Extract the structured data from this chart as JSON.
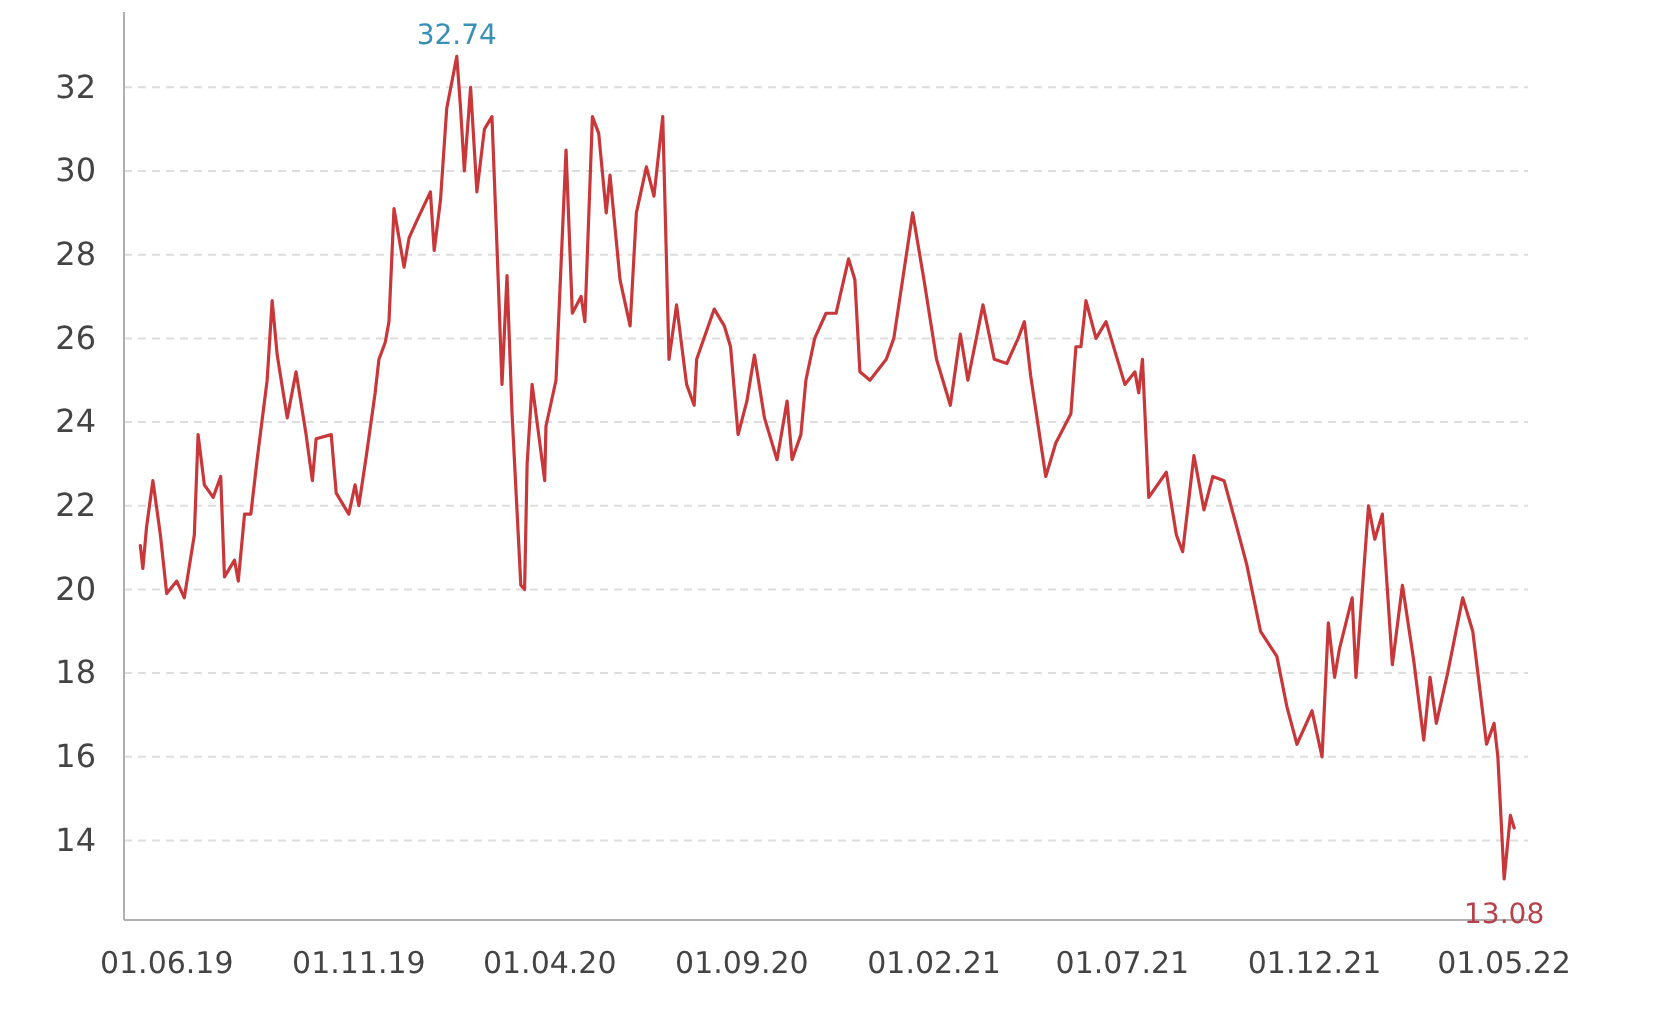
{
  "chart_data": {
    "type": "line",
    "xlim": [
      "2019-04-28",
      "2022-05-20"
    ],
    "xticks": [
      {
        "value": "2019-06-01",
        "label": "01.06.19"
      },
      {
        "value": "2019-11-01",
        "label": "01.11.19"
      },
      {
        "value": "2020-04-01",
        "label": "01.04.20"
      },
      {
        "value": "2020-09-01",
        "label": "01.09.20"
      },
      {
        "value": "2021-02-01",
        "label": "01.02.21"
      },
      {
        "value": "2021-07-01",
        "label": "01.07.21"
      },
      {
        "value": "2021-12-01",
        "label": "01.12.21"
      },
      {
        "value": "2022-05-01",
        "label": "01.05.22"
      }
    ],
    "ylim": [
      12.1,
      33.8
    ],
    "yticks": [
      14,
      16,
      18,
      20,
      22,
      24,
      26,
      28,
      30,
      32
    ],
    "grid": "y",
    "marker": "none",
    "line_style": "solid",
    "annotations": [
      {
        "text": "32.74",
        "x": "2020-01-18",
        "y": 32.74
      },
      {
        "text": "13.08",
        "x": "2022-05-01",
        "y": 13.08
      }
    ],
    "series": [
      {
        "color": "#c8373a",
        "x": [
          "2019-05-11",
          "2019-05-13",
          "2019-05-16",
          "2019-05-21",
          "2019-05-27",
          "2019-06-01",
          "2019-06-09",
          "2019-06-15",
          "2019-06-23",
          "2019-06-26",
          "2019-07-01",
          "2019-07-08",
          "2019-07-14",
          "2019-07-17",
          "2019-07-25",
          "2019-07-28",
          "2019-08-02",
          "2019-08-07",
          "2019-08-12",
          "2019-08-20",
          "2019-08-24",
          "2019-08-28",
          "2019-09-05",
          "2019-09-12",
          "2019-09-20",
          "2019-09-25",
          "2019-09-28",
          "2019-10-10",
          "2019-10-14",
          "2019-10-24",
          "2019-10-29",
          "2019-11-01",
          "2019-11-07",
          "2019-11-14",
          "2019-11-17",
          "2019-11-22",
          "2019-11-25",
          "2019-11-29",
          "2019-12-07",
          "2019-12-11",
          "2019-12-17",
          "2019-12-28",
          "2019-12-31",
          "2020-01-05",
          "2020-01-10",
          "2020-01-18",
          "2020-01-21",
          "2020-01-24",
          "2020-01-29",
          "2020-02-03",
          "2020-02-09",
          "2020-02-15",
          "2020-02-19",
          "2020-02-23",
          "2020-02-27",
          "2020-03-02",
          "2020-03-09",
          "2020-03-12",
          "2020-03-14",
          "2020-03-18",
          "2020-03-28",
          "2020-03-29",
          "2020-04-06",
          "2020-04-14",
          "2020-04-19",
          "2020-04-26",
          "2020-04-29",
          "2020-05-05",
          "2020-05-10",
          "2020-05-16",
          "2020-05-19",
          "2020-05-27",
          "2020-06-04",
          "2020-06-09",
          "2020-06-17",
          "2020-06-23",
          "2020-06-30",
          "2020-07-05",
          "2020-07-11",
          "2020-07-19",
          "2020-07-25",
          "2020-07-27",
          "2020-08-10",
          "2020-08-18",
          "2020-08-23",
          "2020-08-29",
          "2020-09-05",
          "2020-09-11",
          "2020-09-19",
          "2020-09-29",
          "2020-10-07",
          "2020-10-11",
          "2020-10-18",
          "2020-10-22",
          "2020-10-29",
          "2020-11-07",
          "2020-11-15",
          "2020-11-25",
          "2020-11-30",
          "2020-12-04",
          "2020-12-12",
          "2020-12-25",
          "2020-12-31",
          "2021-01-15",
          "2021-01-24",
          "2021-02-03",
          "2021-02-14",
          "2021-02-22",
          "2021-02-28",
          "2021-03-12",
          "2021-03-21",
          "2021-03-31",
          "2021-04-09",
          "2021-04-14",
          "2021-04-19",
          "2021-05-01",
          "2021-05-09",
          "2021-05-21",
          "2021-05-25",
          "2021-05-29",
          "2021-06-02",
          "2021-06-10",
          "2021-06-18",
          "2021-07-03",
          "2021-07-11",
          "2021-07-14",
          "2021-07-17",
          "2021-07-22",
          "2021-08-05",
          "2021-08-13",
          "2021-08-18",
          "2021-08-27",
          "2021-09-04",
          "2021-09-11",
          "2021-09-20",
          "2021-09-30",
          "2021-10-08",
          "2021-10-19",
          "2021-11-01",
          "2021-11-09",
          "2021-11-17",
          "2021-11-29",
          "2021-12-07",
          "2021-12-12",
          "2021-12-17",
          "2021-12-21",
          "2021-12-31",
          "2022-01-03",
          "2022-01-13",
          "2022-01-18",
          "2022-01-24",
          "2022-02-01",
          "2022-02-09",
          "2022-02-18",
          "2022-02-26",
          "2022-03-03",
          "2022-03-08",
          "2022-03-17",
          "2022-03-29",
          "2022-04-06",
          "2022-04-17",
          "2022-04-23",
          "2022-04-26",
          "2022-05-01",
          "2022-05-06",
          "2022-05-09"
        ],
        "values": [
          21.05,
          20.5,
          21.5,
          22.6,
          21.3,
          19.9,
          20.2,
          19.8,
          21.3,
          23.7,
          22.5,
          22.2,
          22.7,
          20.3,
          20.7,
          20.2,
          21.8,
          21.8,
          23.1,
          25.0,
          26.9,
          25.6,
          24.1,
          25.2,
          23.7,
          22.6,
          23.6,
          23.7,
          22.3,
          21.8,
          22.5,
          22.0,
          23.2,
          24.7,
          25.5,
          25.9,
          26.4,
          29.1,
          27.7,
          28.4,
          28.8,
          29.5,
          28.1,
          29.3,
          31.5,
          32.74,
          31.5,
          30.0,
          32.0,
          29.5,
          31.0,
          31.3,
          28.2,
          24.9,
          27.5,
          24.2,
          20.1,
          20.0,
          23.0,
          24.9,
          22.6,
          23.9,
          25.0,
          30.5,
          26.6,
          27.0,
          26.4,
          31.3,
          30.9,
          29.0,
          29.9,
          27.4,
          26.3,
          29.0,
          30.1,
          29.4,
          31.3,
          25.5,
          26.8,
          24.9,
          24.4,
          25.5,
          26.7,
          26.3,
          25.8,
          23.7,
          24.5,
          25.6,
          24.1,
          23.1,
          24.5,
          23.1,
          23.7,
          25.0,
          26.0,
          26.6,
          26.6,
          27.9,
          27.4,
          25.2,
          25.0,
          25.5,
          26.0,
          29.0,
          27.4,
          25.5,
          24.4,
          26.1,
          25.0,
          26.8,
          25.5,
          25.4,
          26.0,
          26.4,
          25.1,
          22.7,
          23.5,
          24.2,
          25.8,
          25.8,
          26.9,
          26.0,
          26.4,
          24.9,
          25.2,
          24.7,
          25.5,
          22.2,
          22.8,
          21.3,
          20.9,
          23.2,
          21.9,
          22.7,
          22.6,
          21.5,
          20.6,
          19.0,
          18.4,
          17.2,
          16.3,
          17.1,
          16.0,
          19.2,
          17.9,
          18.6,
          19.8,
          17.9,
          22.0,
          21.2,
          21.8,
          18.2,
          20.1,
          18.3,
          16.4,
          17.9,
          16.8,
          18.0,
          19.8,
          19.0,
          16.3,
          16.8,
          16.0,
          13.08,
          14.6,
          14.3
        ]
      }
    ]
  }
}
